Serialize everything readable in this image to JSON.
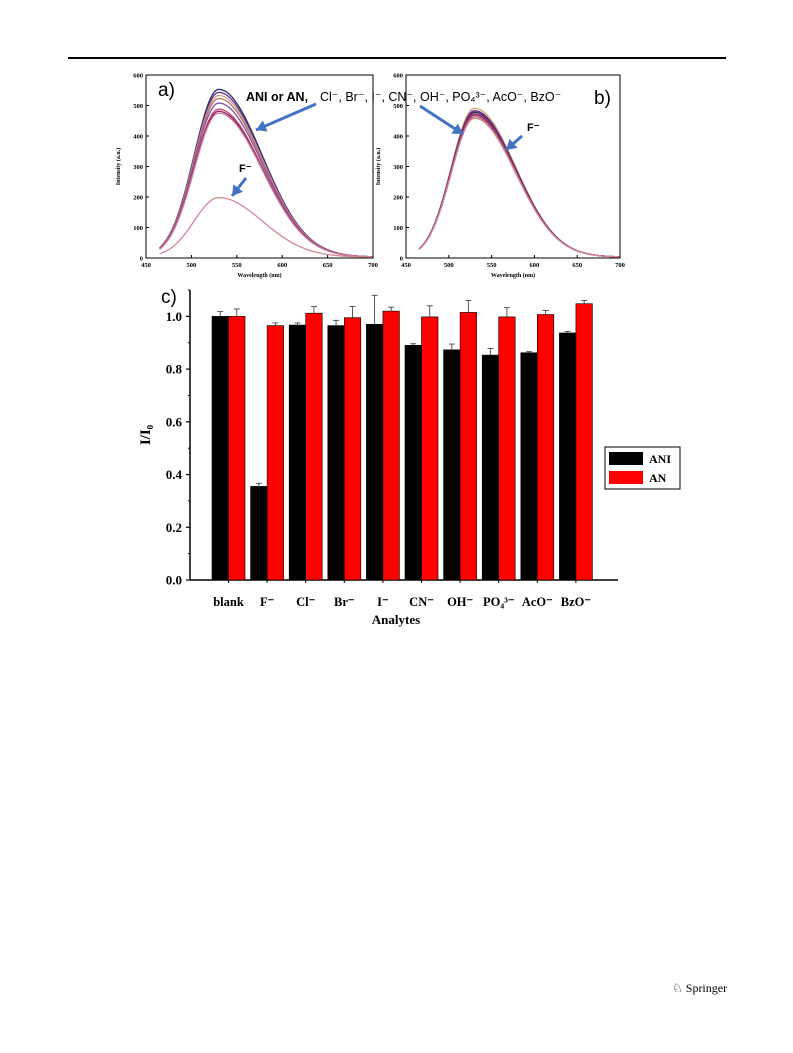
{
  "page": {
    "footer_brand": "Springer",
    "footer_icon": "springer-horse-icon"
  },
  "chart_data": [
    {
      "panel_label": "a)",
      "type": "line",
      "xlabel": "Wavelength (nm)",
      "ylabel": "Intensity (a.u.)",
      "xlim": [
        450,
        700
      ],
      "ylim": [
        0,
        600
      ],
      "xticks": [
        450,
        500,
        550,
        600,
        650,
        700
      ],
      "yticks": [
        0,
        100,
        200,
        300,
        400,
        500,
        600
      ],
      "annotation_main": "ANI or AN,",
      "annotation_ions": "Cl⁻, Br⁻, I⁻, CN⁻, OH⁻, PO₄³⁻, AcO⁻, BzO⁻",
      "annotation_f": "F⁻",
      "x_range": [
        465,
        700
      ],
      "peak_x": 530,
      "series": [
        {
          "peak": 550,
          "color": "#2b2e6b"
        },
        {
          "peak": 540,
          "color": "#6a2c8e"
        },
        {
          "peak": 530,
          "color": "#c9a27a"
        },
        {
          "peak": 520,
          "color": "#b07070"
        },
        {
          "peak": 505,
          "color": "#8a4fa0"
        },
        {
          "peak": 485,
          "color": "#c04070"
        },
        {
          "peak": 478,
          "color": "#8e1f6a"
        },
        {
          "peak": 472,
          "color": "#d07a9a"
        },
        {
          "peak": 195,
          "color": "#d08a90"
        }
      ]
    },
    {
      "panel_label": "b)",
      "type": "line",
      "xlabel": "Wavelength (nm)",
      "ylabel": "Intensity (a.u.)",
      "xlim": [
        450,
        700
      ],
      "ylim": [
        0,
        600
      ],
      "xticks": [
        450,
        500,
        550,
        600,
        650,
        700
      ],
      "yticks": [
        0,
        100,
        200,
        300,
        400,
        500,
        600
      ],
      "annotation_f": "F⁻",
      "x_range": [
        465,
        700
      ],
      "peak_x": 530,
      "series": [
        {
          "peak": 488,
          "color": "#d4a070"
        },
        {
          "peak": 480,
          "color": "#6a2c8e"
        },
        {
          "peak": 475,
          "color": "#2b2e6b"
        },
        {
          "peak": 470,
          "color": "#c04070"
        },
        {
          "peak": 466,
          "color": "#8e1f6a"
        },
        {
          "peak": 460,
          "color": "#b07070"
        },
        {
          "peak": 455,
          "color": "#d08a90"
        }
      ]
    },
    {
      "panel_label": "c)",
      "type": "bar",
      "xlabel": "Analytes",
      "ylabel": "I/I₀",
      "ylim": [
        0,
        1.1
      ],
      "yticks": [
        "0.0",
        "0.2",
        "0.4",
        "0.6",
        "0.8",
        "1.0"
      ],
      "categories": [
        "blank",
        "F⁻",
        "Cl⁻",
        "Br⁻",
        "I⁻",
        "CN⁻",
        "OH⁻",
        "PO₄³⁻",
        "AcO⁻",
        "BzO⁻"
      ],
      "legend_position": "right",
      "series": [
        {
          "name": "ANI",
          "color": "#000000",
          "values": [
            1.0,
            0.355,
            0.967,
            0.965,
            0.97,
            0.89,
            0.873,
            0.853,
            0.862,
            0.937
          ],
          "errors": [
            0.018,
            0.012,
            0.008,
            0.02,
            0.11,
            0.006,
            0.022,
            0.025,
            0.004,
            0.005
          ]
        },
        {
          "name": "AN",
          "color": "#ff0000",
          "values": [
            1.0,
            0.965,
            1.012,
            0.995,
            1.02,
            0.998,
            1.015,
            0.998,
            1.007,
            1.048
          ],
          "errors": [
            0.028,
            0.01,
            0.025,
            0.042,
            0.015,
            0.042,
            0.045,
            0.035,
            0.015,
            0.012
          ]
        }
      ]
    }
  ]
}
